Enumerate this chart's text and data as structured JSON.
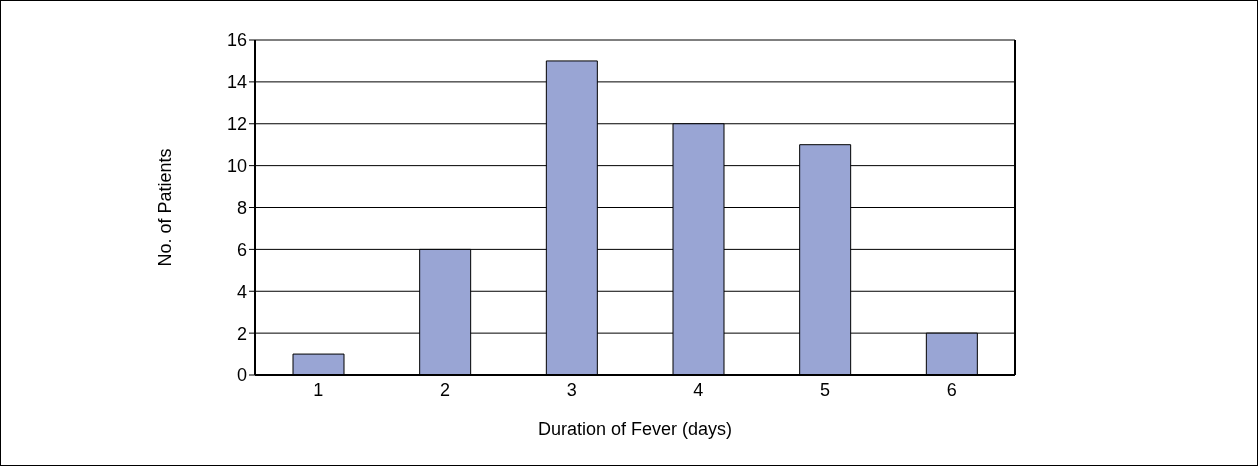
{
  "chart_data": {
    "type": "bar",
    "xlabel": "Duration of Fever (days)",
    "ylabel": "No. of Patients",
    "categories": [
      "1",
      "2",
      "3",
      "4",
      "5",
      "6"
    ],
    "values": [
      1,
      6,
      15,
      12,
      11,
      2
    ],
    "color": "#99a5d4",
    "ylim": [
      0,
      16
    ],
    "yticks": [
      0,
      2,
      4,
      6,
      8,
      10,
      12,
      14,
      16
    ],
    "grid": "y"
  }
}
